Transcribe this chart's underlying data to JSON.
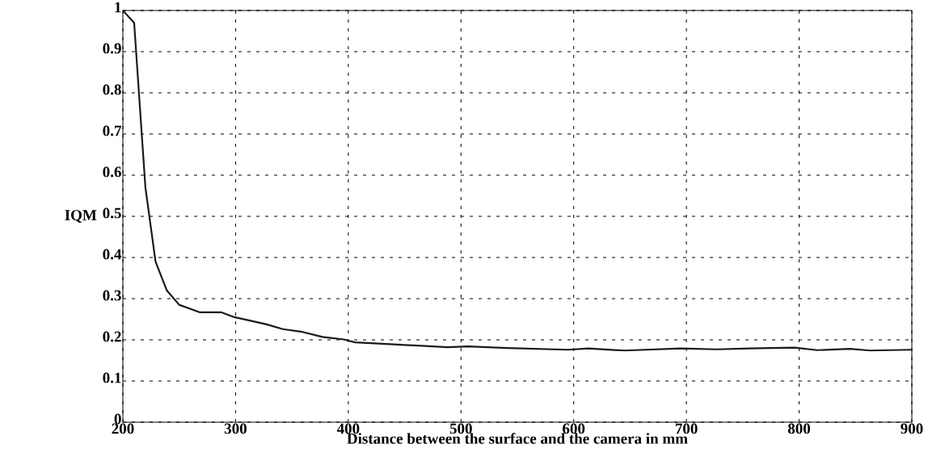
{
  "chart_data": {
    "type": "line",
    "xlabel": "Distance between the surface and the camera in mm",
    "ylabel": "IQM",
    "x": [
      200,
      210,
      220,
      229,
      239,
      250,
      268,
      287,
      299,
      327,
      342,
      358,
      377,
      396,
      406,
      434,
      488,
      506,
      541,
      595,
      613,
      645,
      695,
      727,
      756,
      796,
      816,
      845,
      863,
      900
    ],
    "series": [
      {
        "color": "#1a1a1a",
        "values": [
          1.0,
          0.97,
          0.57,
          0.39,
          0.32,
          0.285,
          0.267,
          0.267,
          0.255,
          0.238,
          0.226,
          0.22,
          0.207,
          0.201,
          0.194,
          0.19,
          0.182,
          0.184,
          0.18,
          0.176,
          0.179,
          0.174,
          0.179,
          0.177,
          0.179,
          0.181,
          0.175,
          0.178,
          0.174,
          0.176
        ]
      }
    ],
    "xlim": [
      200,
      900
    ],
    "ylim": [
      0,
      1
    ],
    "xticks": [
      200,
      300,
      400,
      500,
      600,
      700,
      800,
      900
    ],
    "yticks": [
      0,
      0.1,
      0.2,
      0.3,
      0.4,
      0.5,
      0.6,
      0.7,
      0.8,
      0.9,
      1
    ],
    "grid": true,
    "marker": "none",
    "line_style": "solid"
  }
}
